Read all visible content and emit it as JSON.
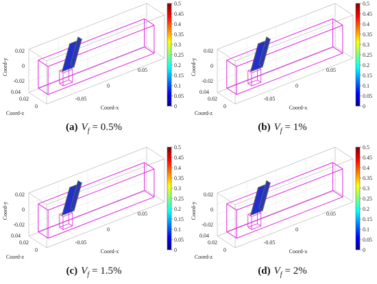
{
  "panels": [
    {
      "caption": {
        "label": "(a)",
        "symbol": "V",
        "subscript": "f",
        "value": "= 0.5%"
      },
      "axes": {
        "x_label": "Coord-x",
        "y_label": "Coord-y",
        "z_label": "Coord-z",
        "x_ticks": [
          -0.05,
          0,
          0.05
        ],
        "y_ticks": [
          0.02,
          0,
          -0.02
        ],
        "z_ticks": [
          0.04,
          0.02,
          0
        ]
      },
      "colorbar_ticks": [
        0.5,
        0.45,
        0.4,
        0.35,
        0.3,
        0.25,
        0.2,
        0.15,
        0.1,
        0.05,
        0
      ]
    },
    {
      "caption": {
        "label": "(b)",
        "symbol": "V",
        "subscript": "f",
        "value": "= 1%"
      },
      "axes": {
        "x_label": "Coord-x",
        "y_label": "Coord-y",
        "z_label": "Coord-z",
        "x_ticks": [
          -0.05,
          0,
          0.05
        ],
        "y_ticks": [
          0.02,
          0,
          -0.02
        ],
        "z_ticks": [
          0.04,
          0.02,
          0
        ]
      },
      "colorbar_ticks": [
        0.5,
        0.45,
        0.4,
        0.35,
        0.3,
        0.25,
        0.2,
        0.15,
        0.1,
        0.05,
        0
      ]
    },
    {
      "caption": {
        "label": "(c)",
        "symbol": "V",
        "subscript": "f",
        "value": "= 1.5%"
      },
      "axes": {
        "x_label": "Coord-x",
        "y_label": "Coord-y",
        "z_label": "Coord-z",
        "x_ticks": [
          -0.05,
          0,
          0.05
        ],
        "y_ticks": [
          0.02,
          0,
          -0.02
        ],
        "z_ticks": [
          0.04,
          0.02,
          0
        ]
      },
      "colorbar_ticks": [
        0.5,
        0.45,
        0.4,
        0.35,
        0.3,
        0.25,
        0.2,
        0.15,
        0.1,
        0.05,
        0
      ]
    },
    {
      "caption": {
        "label": "(d)",
        "symbol": "V",
        "subscript": "f",
        "value": "= 2%"
      },
      "axes": {
        "x_label": "Coord-x",
        "y_label": "Coord-y",
        "z_label": "Coord-z",
        "x_ticks": [
          -0.05,
          0,
          0.05
        ],
        "y_ticks": [
          0.02,
          0,
          -0.02
        ],
        "z_ticks": [
          0.04,
          0.02,
          0
        ]
      },
      "colorbar_ticks": [
        0.5,
        0.45,
        0.4,
        0.35,
        0.3,
        0.25,
        0.2,
        0.15,
        0.1,
        0.05,
        0
      ]
    }
  ]
}
